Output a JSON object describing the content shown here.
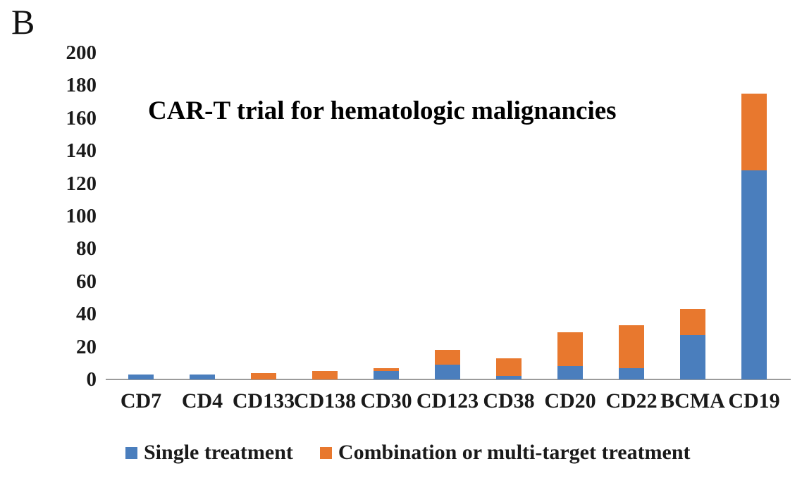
{
  "panel_label": "B",
  "chart_data": {
    "type": "bar",
    "stacked": true,
    "title": "CAR-T trial for hematologic malignancies",
    "categories": [
      "CD7",
      "CD4",
      "CD133",
      "CD138",
      "CD30",
      "CD123",
      "CD38",
      "CD20",
      "CD22",
      "BCMA",
      "CD19"
    ],
    "series": [
      {
        "name": "Single treatment",
        "color": "#4A7EBD",
        "values": [
          3,
          3,
          0,
          0,
          5,
          9,
          2,
          8,
          7,
          27,
          128
        ]
      },
      {
        "name": "Combination or multi-target treatment",
        "color": "#E8782E",
        "values": [
          0,
          0,
          4,
          5,
          2,
          9,
          11,
          21,
          26,
          16,
          47
        ]
      }
    ],
    "totals": [
      3,
      3,
      4,
      5,
      7,
      18,
      13,
      29,
      33,
      43,
      175
    ],
    "ylim": [
      0,
      200
    ],
    "ytick_step": 20,
    "yticks": [
      0,
      20,
      40,
      60,
      80,
      100,
      120,
      140,
      160,
      180,
      200
    ],
    "xlabel": "",
    "ylabel": "",
    "grid": false,
    "legend_position": "bottom",
    "axis_line_color": "#9B9B9B"
  }
}
